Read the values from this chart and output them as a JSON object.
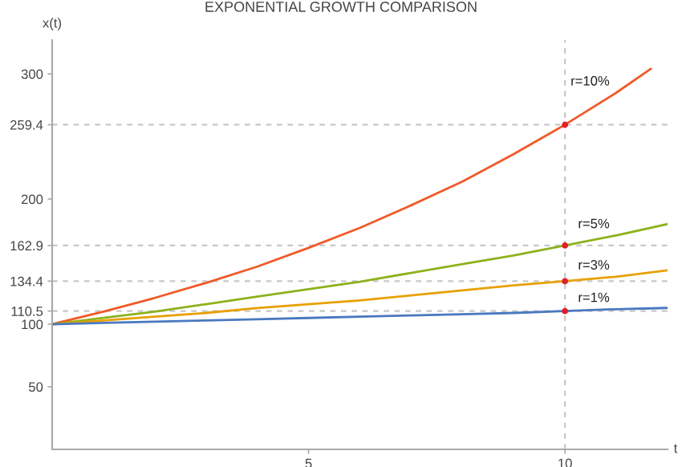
{
  "chart_data": {
    "type": "line",
    "title": "EXPONENTIAL GROWTH COMPARISON",
    "xlabel": "t",
    "ylabel": "x(t)",
    "xlim": [
      0,
      12
    ],
    "ylim": [
      0,
      327
    ],
    "xticks": [
      5,
      10
    ],
    "yticks": [
      50,
      100,
      110.5,
      134.4,
      162.9,
      200,
      259.4,
      300
    ],
    "grid": false,
    "legend": false,
    "series": [
      {
        "name": "r=10%",
        "color": "#f05a28",
        "x": [
          0,
          1,
          2,
          3,
          4,
          5,
          6,
          7,
          8,
          9,
          10,
          11,
          11.67
        ],
        "values": [
          100,
          110,
          121,
          133,
          146,
          161,
          177,
          195,
          214,
          236,
          259.4,
          285,
          304
        ]
      },
      {
        "name": "r=5%",
        "color": "#8cb21c",
        "x": [
          0,
          1,
          2,
          3,
          4,
          5,
          6,
          7,
          8,
          9,
          10,
          11,
          12
        ],
        "values": [
          100,
          105,
          110,
          116,
          122,
          128,
          134,
          141,
          148,
          155,
          162.9,
          171,
          180
        ]
      },
      {
        "name": "r=3%",
        "color": "#e8a000",
        "x": [
          0,
          1,
          2,
          3,
          4,
          5,
          6,
          7,
          8,
          9,
          10,
          11,
          12
        ],
        "values": [
          100,
          103,
          106,
          109,
          113,
          116,
          119,
          123,
          127,
          131,
          134.4,
          138,
          143
        ]
      },
      {
        "name": "r=1%",
        "color": "#4a78c0",
        "x": [
          0,
          1,
          2,
          3,
          4,
          5,
          6,
          7,
          8,
          9,
          10,
          11,
          12
        ],
        "values": [
          100,
          101,
          102,
          103,
          104,
          105,
          106,
          107,
          108,
          109,
          110.5,
          112,
          113
        ]
      },
      {
        "type": "scatter",
        "color": "#e0202a",
        "x": [
          10,
          10,
          10,
          10
        ],
        "values": [
          259.4,
          162.9,
          134.4,
          110.5
        ]
      }
    ],
    "ref_lines": [
      {
        "axis": "y",
        "value": 259.4,
        "color": "#c8c8c8",
        "line_style": "dashed"
      },
      {
        "axis": "y",
        "value": 162.9,
        "color": "#c8c8c8",
        "line_style": "dashed"
      },
      {
        "axis": "y",
        "value": 134.4,
        "color": "#c8c8c8",
        "line_style": "dashed"
      },
      {
        "axis": "y",
        "value": 110.5,
        "color": "#c8c8c8",
        "line_style": "dashed"
      },
      {
        "axis": "x",
        "value": 10,
        "color": "#c8c8c8",
        "line_style": "dashed"
      }
    ]
  }
}
